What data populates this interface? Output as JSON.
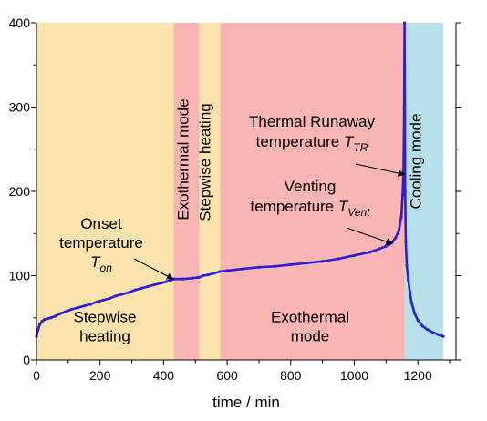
{
  "chart_data": {
    "type": "line",
    "xlabel": "time / min",
    "ylabel": "",
    "xlim": [
      0,
      1320
    ],
    "ylim": [
      0,
      400
    ],
    "x_ticks": [
      0,
      200,
      400,
      600,
      800,
      1000,
      1200
    ],
    "y_ticks": [
      0,
      100,
      200,
      300,
      400
    ],
    "x_tick_labels": [
      "0",
      "200",
      "400",
      "600",
      "800",
      "1000",
      "1200"
    ],
    "y_tick_labels": [
      "0",
      "100",
      "200",
      "300",
      "400"
    ],
    "grid": false,
    "series_color": "#2a1fd6",
    "regions": [
      {
        "x0": 0,
        "x1": 432,
        "color": "#fbe3ad",
        "label_lines": [
          "Stepwise",
          "heating"
        ],
        "orientation": "horizontal"
      },
      {
        "x0": 432,
        "x1": 512,
        "color": "#f9b4b4",
        "label_lines": [
          "Exothermal mode"
        ],
        "orientation": "vertical"
      },
      {
        "x0": 512,
        "x1": 578,
        "color": "#fbe3ad",
        "label_lines": [
          "Stepwise heating"
        ],
        "orientation": "vertical"
      },
      {
        "x0": 578,
        "x1": 1158,
        "color": "#f9b4b4",
        "label_lines": [
          "Exothermal",
          "mode"
        ],
        "orientation": "horizontal"
      },
      {
        "x0": 1158,
        "x1": 1280,
        "color": "#b5e1ea",
        "label_lines": [
          "Cooling mode"
        ],
        "orientation": "vertical"
      }
    ],
    "series": [
      {
        "x": [
          0,
          5,
          10,
          18,
          25,
          35,
          45,
          60,
          75,
          90,
          110,
          130,
          150,
          170,
          190,
          210,
          230,
          250,
          270,
          290,
          310,
          330,
          350,
          370,
          390,
          410,
          425,
          432,
          460,
          490,
          512,
          525,
          540,
          560,
          578,
          600,
          650,
          700,
          750,
          800,
          850,
          900,
          950,
          1000,
          1050,
          1080,
          1100,
          1110,
          1120,
          1130,
          1140,
          1148,
          1152,
          1155,
          1157,
          1158,
          1160,
          1162,
          1165,
          1170,
          1175,
          1180,
          1190,
          1200,
          1215,
          1230,
          1250,
          1265,
          1280
        ],
        "y": [
          28,
          36,
          42,
          46,
          48,
          49,
          50,
          52,
          55,
          57,
          60,
          62,
          64,
          66,
          69,
          71,
          73,
          76,
          78,
          80,
          83,
          85,
          87,
          89,
          91,
          93,
          95,
          96,
          96,
          97,
          98,
          100,
          101,
          103,
          105,
          106,
          108,
          110,
          111,
          113,
          115,
          117,
          120,
          124,
          128,
          132,
          135,
          137,
          140,
          145,
          153,
          170,
          195,
          225,
          300,
          400,
          200,
          140,
          112,
          95,
          80,
          68,
          55,
          47,
          40,
          36,
          32,
          30,
          28
        ]
      }
    ],
    "annotations": [
      {
        "lines": [
          "Onset",
          "temperature",
          "T"
        ],
        "subscript": "on",
        "target": [
          430,
          96
        ]
      },
      {
        "lines": [
          "Venting",
          "temperature T"
        ],
        "subscript": "Vent",
        "target": [
          1120,
          138
        ]
      },
      {
        "lines": [
          "Thermal Runaway",
          "temperature T"
        ],
        "subscript": "TR",
        "target": [
          1158,
          220
        ]
      }
    ]
  }
}
